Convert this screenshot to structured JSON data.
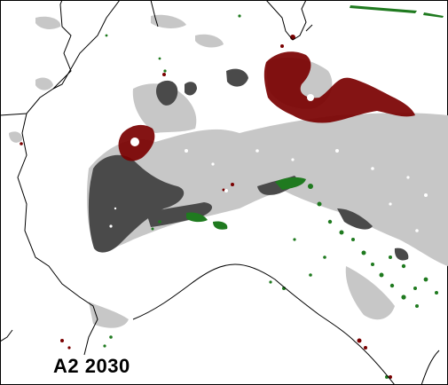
{
  "map": {
    "label": "A2 2030",
    "colors": {
      "background": "#ffffff",
      "border_line": "#000000",
      "frame": "#000000",
      "light_gray": "#c7c7c7",
      "dark_gray": "#4a4a4a",
      "dark_red": "#7a0000",
      "green": "#1f7a1f"
    },
    "legend_items": []
  }
}
